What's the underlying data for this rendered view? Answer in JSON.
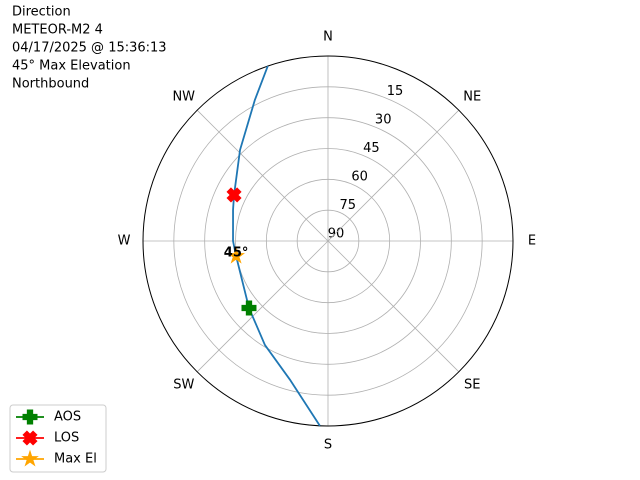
{
  "chart_data": {
    "type": "polar",
    "title_lines": [
      "Direction",
      "METEOR-M2 4",
      "04/17/2025 @ 15:36:13",
      "45° Max Elevation",
      "Northbound"
    ],
    "theta_ticks": [
      {
        "value": 0,
        "label": "N"
      },
      {
        "value": 45,
        "label": "NE"
      },
      {
        "value": 90,
        "label": "E"
      },
      {
        "value": 135,
        "label": "SE"
      },
      {
        "value": 180,
        "label": "S"
      },
      {
        "value": 225,
        "label": "SW"
      },
      {
        "value": 270,
        "label": "W"
      },
      {
        "value": 315,
        "label": "NW"
      }
    ],
    "rlim": [
      90,
      0
    ],
    "rticks": [
      15,
      30,
      45,
      60,
      75,
      90
    ],
    "grid": true,
    "x": [
      182.5,
      195.3,
      211.2,
      229.7,
      260.7,
      270,
      288.1,
      296.1,
      316,
      332.6,
      341
    ],
    "values": [
      0,
      20,
      30.8,
      39.6,
      44.7,
      43.8,
      41.4,
      39.1,
      28.4,
      12.7,
      0
    ],
    "color": "#1f77b4",
    "max_el_label": "45°",
    "legend": "lower left",
    "series": [
      {
        "name": "AOS",
        "color": "green",
        "marker": "plus",
        "x": [
          229.7
        ],
        "values": [
          39.6
        ]
      },
      {
        "name": "LOS",
        "color": "red",
        "marker": "x",
        "x": [
          296.1
        ],
        "values": [
          39.1
        ]
      },
      {
        "name": "Max El",
        "color": "orange",
        "marker": "star",
        "x": [
          260.7
        ],
        "values": [
          44.7
        ]
      }
    ]
  }
}
